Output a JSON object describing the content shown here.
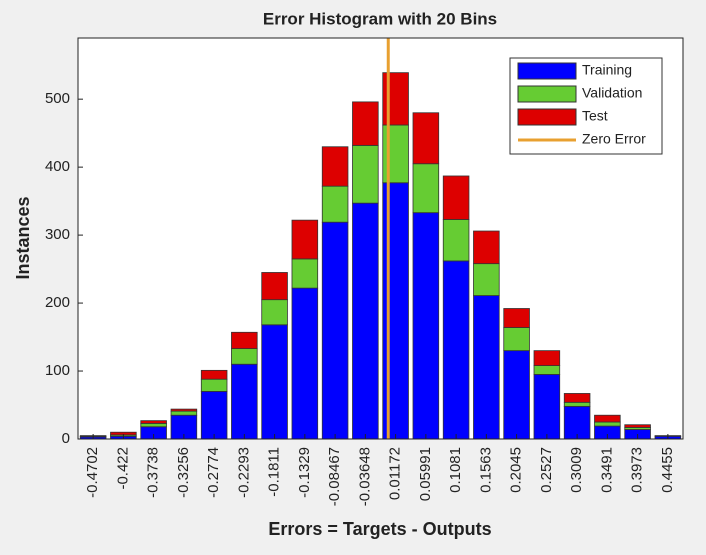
{
  "chart_data": {
    "type": "stacked_histogram",
    "title": "Error Histogram with 20 Bins",
    "x_label": "Errors = Targets - Outputs",
    "y_label": "Instances",
    "x": [
      -0.4702,
      -0.422,
      -0.3738,
      -0.3256,
      -0.2774,
      -0.2293,
      -0.1811,
      -0.1329,
      -0.08467,
      -0.03648,
      0.01172,
      0.05991,
      0.1081,
      0.1563,
      0.2045,
      0.2527,
      0.3009,
      0.3491,
      0.3973,
      0.4455
    ],
    "series": [
      {
        "name": "Training",
        "color": "#0000ff",
        "values": [
          3,
          4,
          18,
          35,
          70,
          110,
          168,
          222,
          319,
          347,
          377,
          333,
          262,
          211,
          130,
          95,
          48,
          19,
          14,
          4
        ]
      },
      {
        "name": "Validation",
        "color": "#66cc33",
        "values": [
          1,
          2,
          5,
          6,
          18,
          23,
          37,
          43,
          53,
          85,
          85,
          72,
          61,
          47,
          34,
          13,
          6,
          6,
          3,
          1
        ]
      },
      {
        "name": "Test",
        "color": "#dd0000",
        "values": [
          1,
          4,
          4,
          3,
          13,
          24,
          40,
          57,
          58,
          64,
          77,
          75,
          64,
          48,
          28,
          22,
          13,
          10,
          4,
          0
        ]
      }
    ],
    "zero_line": {
      "name": "Zero Error",
      "value": 0,
      "color": "#e8a030"
    },
    "xlim": [
      -0.4943,
      0.4696
    ],
    "ylim": [
      0,
      590
    ],
    "yticks": [
      0,
      100,
      200,
      300,
      400,
      500
    ],
    "legend": "upper right"
  }
}
